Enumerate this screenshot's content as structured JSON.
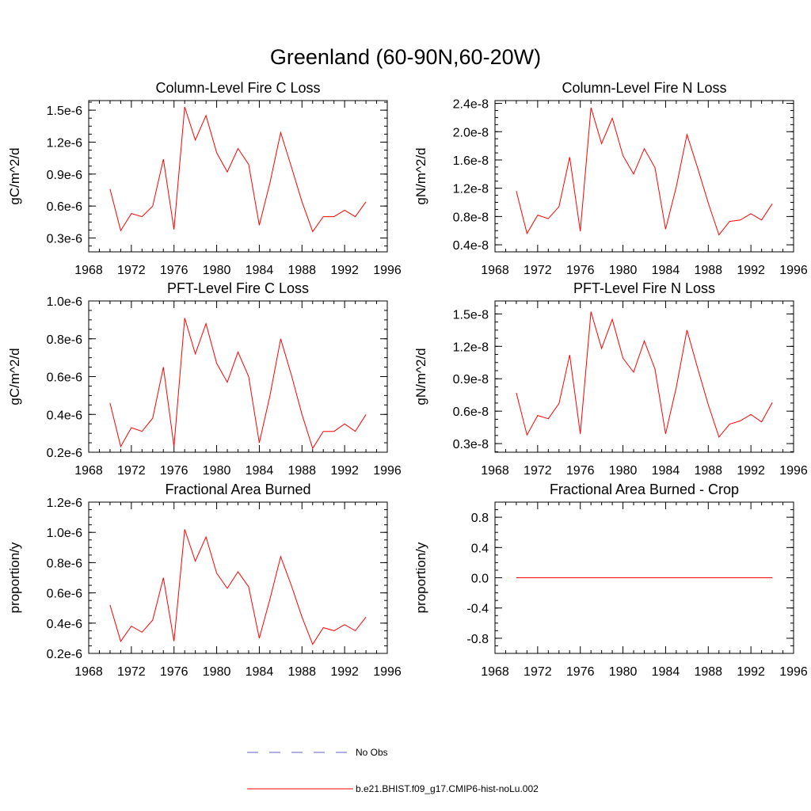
{
  "figure": {
    "title": "Greenland (60-90N,60-20W)"
  },
  "legend": {
    "entries": [
      {
        "label": "No Obs",
        "color": "#6060c0",
        "style": "dashed"
      },
      {
        "label": "b.e21.BHIST.f09_g17.CMIP6-hist-noLu.002",
        "color": "#ff0000",
        "style": "solid"
      }
    ]
  },
  "chart_data": [
    {
      "type": "line",
      "title": "Column-Level Fire C Loss",
      "ylabel": "gC/m^2/d",
      "xlim": [
        1968,
        1996
      ],
      "ylim": [
        1.7e-07,
        1.59e-06
      ],
      "xticks": [
        1968,
        1972,
        1976,
        1980,
        1984,
        1988,
        1992,
        1996
      ],
      "xtick_labels": [
        "1968",
        "1972",
        "1976",
        "1980",
        "1984",
        "1988",
        "1992",
        "1996"
      ],
      "yticks": [
        3e-07,
        6e-07,
        9e-07,
        1.2e-06,
        1.5e-06
      ],
      "ytick_labels": [
        "0.3e-6",
        "0.6e-6",
        "0.9e-6",
        "1.2e-6",
        "1.5e-6"
      ],
      "grid": false,
      "series": [
        {
          "name": "b.e21.BHIST.f09_g17.CMIP6-hist-noLu.002",
          "color": "#ff0000",
          "x": [
            1970,
            1971,
            1972,
            1973,
            1974,
            1975,
            1976,
            1977,
            1978,
            1979,
            1980,
            1981,
            1982,
            1983,
            1984,
            1985,
            1986,
            1987,
            1988,
            1989,
            1990,
            1991,
            1992,
            1993,
            1994
          ],
          "y": [
            7.6e-07,
            3.7e-07,
            5.3e-07,
            5e-07,
            6e-07,
            1.04e-06,
            3.8e-07,
            1.53e-06,
            1.22e-06,
            1.45e-06,
            1.1e-06,
            9.2e-07,
            1.14e-06,
            9.9e-07,
            4.2e-07,
            8.2e-07,
            1.29e-06,
            9.7e-07,
            6.4e-07,
            3.6e-07,
            5e-07,
            5e-07,
            5.6e-07,
            5e-07,
            6.4e-07
          ]
        }
      ]
    },
    {
      "type": "line",
      "title": "Column-Level Fire N Loss",
      "ylabel": "gN/m^2/d",
      "xlim": [
        1968,
        1996
      ],
      "ylim": [
        3e-09,
        2.44e-08
      ],
      "xticks": [
        1968,
        1972,
        1976,
        1980,
        1984,
        1988,
        1992,
        1996
      ],
      "xtick_labels": [
        "1968",
        "1972",
        "1976",
        "1980",
        "1984",
        "1988",
        "1992",
        "1996"
      ],
      "yticks": [
        4e-09,
        8e-09,
        1.2e-08,
        1.6e-08,
        2e-08,
        2.4e-08
      ],
      "ytick_labels": [
        "0.4e-8",
        "0.8e-8",
        "1.2e-8",
        "1.6e-8",
        "2.0e-8",
        "2.4e-8"
      ],
      "grid": false,
      "series": [
        {
          "name": "b.e21.BHIST.f09_g17.CMIP6-hist-noLu.002",
          "color": "#ff0000",
          "x": [
            1970,
            1971,
            1972,
            1973,
            1974,
            1975,
            1976,
            1977,
            1978,
            1979,
            1980,
            1981,
            1982,
            1983,
            1984,
            1985,
            1986,
            1987,
            1988,
            1989,
            1990,
            1991,
            1992,
            1993,
            1994
          ],
          "y": [
            1.16e-08,
            5.6e-09,
            8.2e-09,
            7.7e-09,
            9.4e-09,
            1.64e-08,
            5.9e-09,
            2.34e-08,
            1.83e-08,
            2.19e-08,
            1.66e-08,
            1.4e-08,
            1.76e-08,
            1.49e-08,
            6.2e-09,
            1.22e-08,
            1.96e-08,
            1.49e-08,
            9.9e-09,
            5.4e-09,
            7.3e-09,
            7.5e-09,
            8.4e-09,
            7.5e-09,
            9.8e-09
          ]
        }
      ]
    },
    {
      "type": "line",
      "title": "PFT-Level Fire C Loss",
      "ylabel": "gC/m^2/d",
      "xlim": [
        1968,
        1996
      ],
      "ylim": [
        2e-07,
        1e-06
      ],
      "xticks": [
        1968,
        1972,
        1976,
        1980,
        1984,
        1988,
        1992,
        1996
      ],
      "xtick_labels": [
        "1968",
        "1972",
        "1976",
        "1980",
        "1984",
        "1988",
        "1992",
        "1996"
      ],
      "yticks": [
        2e-07,
        4e-07,
        6e-07,
        8e-07,
        1e-06
      ],
      "ytick_labels": [
        "0.2e-6",
        "0.4e-6",
        "0.6e-6",
        "0.8e-6",
        "1.0e-6"
      ],
      "grid": false,
      "series": [
        {
          "name": "b.e21.BHIST.f09_g17.CMIP6-hist-noLu.002",
          "color": "#ff0000",
          "x": [
            1970,
            1971,
            1972,
            1973,
            1974,
            1975,
            1976,
            1977,
            1978,
            1979,
            1980,
            1981,
            1982,
            1983,
            1984,
            1985,
            1986,
            1987,
            1988,
            1989,
            1990,
            1991,
            1992,
            1993,
            1994
          ],
          "y": [
            4.6e-07,
            2.3e-07,
            3.3e-07,
            3.1e-07,
            3.8e-07,
            6.5e-07,
            2.3e-07,
            9.1e-07,
            7.2e-07,
            8.8e-07,
            6.7e-07,
            5.7e-07,
            7.3e-07,
            6e-07,
            2.5e-07,
            5e-07,
            8e-07,
            6.1e-07,
            4e-07,
            2.2e-07,
            3.1e-07,
            3.1e-07,
            3.5e-07,
            3.1e-07,
            4e-07
          ]
        }
      ]
    },
    {
      "type": "line",
      "title": "PFT-Level Fire N Loss",
      "ylabel": "gN/m^2/d",
      "xlim": [
        1968,
        1996
      ],
      "ylim": [
        2.2e-09,
        1.62e-08
      ],
      "xticks": [
        1968,
        1972,
        1976,
        1980,
        1984,
        1988,
        1992,
        1996
      ],
      "xtick_labels": [
        "1968",
        "1972",
        "1976",
        "1980",
        "1984",
        "1988",
        "1992",
        "1996"
      ],
      "yticks": [
        3e-09,
        6e-09,
        9e-09,
        1.2e-08,
        1.5e-08
      ],
      "ytick_labels": [
        "0.3e-8",
        "0.6e-8",
        "0.9e-8",
        "1.2e-8",
        "1.5e-8"
      ],
      "grid": false,
      "series": [
        {
          "name": "b.e21.BHIST.f09_g17.CMIP6-hist-noLu.002",
          "color": "#ff0000",
          "x": [
            1970,
            1971,
            1972,
            1973,
            1974,
            1975,
            1976,
            1977,
            1978,
            1979,
            1980,
            1981,
            1982,
            1983,
            1984,
            1985,
            1986,
            1987,
            1988,
            1989,
            1990,
            1991,
            1992,
            1993,
            1994
          ],
          "y": [
            7.7e-09,
            3.8e-09,
            5.6e-09,
            5.3e-09,
            6.7e-09,
            1.12e-08,
            3.9e-09,
            1.52e-08,
            1.18e-08,
            1.45e-08,
            1.09e-08,
            9.6e-09,
            1.25e-08,
            9.9e-09,
            3.9e-09,
            8.2e-09,
            1.35e-08,
            1e-08,
            6.6e-09,
            3.6e-09,
            4.8e-09,
            5.1e-09,
            5.7e-09,
            5e-09,
            6.8e-09
          ]
        }
      ]
    },
    {
      "type": "line",
      "title": "Fractional Area Burned",
      "ylabel": "proportion/y",
      "xlim": [
        1968,
        1996
      ],
      "ylim": [
        2e-07,
        1.2e-06
      ],
      "xticks": [
        1968,
        1972,
        1976,
        1980,
        1984,
        1988,
        1992,
        1996
      ],
      "xtick_labels": [
        "1968",
        "1972",
        "1976",
        "1980",
        "1984",
        "1988",
        "1992",
        "1996"
      ],
      "yticks": [
        2e-07,
        4e-07,
        6e-07,
        8e-07,
        1e-06,
        1.2e-06
      ],
      "ytick_labels": [
        "0.2e-6",
        "0.4e-6",
        "0.6e-6",
        "0.8e-6",
        "1.0e-6",
        "1.2e-6"
      ],
      "grid": false,
      "series": [
        {
          "name": "b.e21.BHIST.f09_g17.CMIP6-hist-noLu.002",
          "color": "#ff0000",
          "x": [
            1970,
            1971,
            1972,
            1973,
            1974,
            1975,
            1976,
            1977,
            1978,
            1979,
            1980,
            1981,
            1982,
            1983,
            1984,
            1985,
            1986,
            1987,
            1988,
            1989,
            1990,
            1991,
            1992,
            1993,
            1994
          ],
          "y": [
            5.2e-07,
            2.8e-07,
            3.8e-07,
            3.4e-07,
            4.2e-07,
            7e-07,
            2.8e-07,
            1.02e-06,
            8.1e-07,
            9.7e-07,
            7.3e-07,
            6.3e-07,
            7.4e-07,
            6.4e-07,
            3e-07,
            5.6e-07,
            8.4e-07,
            6.5e-07,
            4.4e-07,
            2.6e-07,
            3.7e-07,
            3.5e-07,
            3.9e-07,
            3.5e-07,
            4.4e-07
          ]
        }
      ]
    },
    {
      "type": "line",
      "title": "Fractional Area Burned - Crop",
      "ylabel": "proportion/y",
      "xlim": [
        1968,
        1996
      ],
      "ylim": [
        -1.0,
        1.0
      ],
      "xticks": [
        1968,
        1972,
        1976,
        1980,
        1984,
        1988,
        1992,
        1996
      ],
      "xtick_labels": [
        "1968",
        "1972",
        "1976",
        "1980",
        "1984",
        "1988",
        "1992",
        "1996"
      ],
      "yticks": [
        -0.8,
        -0.4,
        0.0,
        0.4,
        0.8
      ],
      "ytick_labels": [
        "-0.8",
        "-0.4",
        "0.0",
        "0.4",
        "0.8"
      ],
      "grid": false,
      "series": [
        {
          "name": "b.e21.BHIST.f09_g17.CMIP6-hist-noLu.002",
          "color": "#ff0000",
          "x": [
            1970,
            1971,
            1972,
            1973,
            1974,
            1975,
            1976,
            1977,
            1978,
            1979,
            1980,
            1981,
            1982,
            1983,
            1984,
            1985,
            1986,
            1987,
            1988,
            1989,
            1990,
            1991,
            1992,
            1993,
            1994
          ],
          "y": [
            0,
            0,
            0,
            0,
            0,
            0,
            0,
            0,
            0,
            0,
            0,
            0,
            0,
            0,
            0,
            0,
            0,
            0,
            0,
            0,
            0,
            0,
            0,
            0,
            0
          ]
        }
      ]
    }
  ]
}
